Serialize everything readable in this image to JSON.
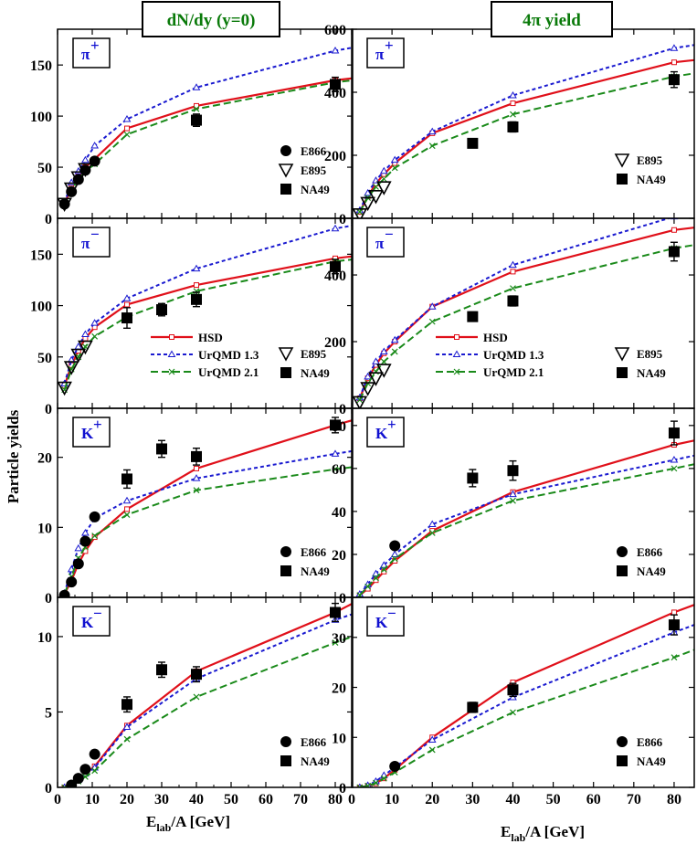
{
  "figure": {
    "ylabel": "Particle yields",
    "xlabel_main": "E",
    "xlabel_sub": "lab",
    "xlabel_rest": "/A [GeV]",
    "columns": [
      {
        "id": "left",
        "header": "dN/dy (y=0)"
      },
      {
        "id": "right",
        "header": "4π yield"
      }
    ]
  },
  "colors": {
    "HSD": "#e0101a",
    "UrQMD 1.3": "#1a1ad0",
    "UrQMD 2.1": "#1a8a1a",
    "data": "#000000",
    "panel_label": "#1010d0",
    "header": "#0a7a0a"
  },
  "chart_data": [
    {
      "id": "pip-dndy",
      "type": "line",
      "label": "π",
      "charge": "+",
      "xlim": [
        0,
        85
      ],
      "ylim": [
        0,
        185
      ],
      "xticks": [
        0,
        10,
        20,
        30,
        40,
        50,
        60,
        70,
        80
      ],
      "yticks": [
        0,
        50,
        100,
        150
      ],
      "series": [
        {
          "name": "HSD",
          "x": [
            2,
            4,
            6,
            8,
            10.7,
            20,
            40,
            80,
            85
          ],
          "y": [
            14,
            30,
            41,
            50,
            58,
            88,
            110,
            135,
            137
          ]
        },
        {
          "name": "UrQMD 1.3",
          "x": [
            2,
            4,
            6,
            8,
            10.7,
            20,
            40,
            80,
            85
          ],
          "y": [
            15,
            35,
            46,
            57,
            71,
            97,
            128,
            164,
            167
          ]
        },
        {
          "name": "UrQMD 2.1",
          "x": [
            2,
            4,
            6,
            8,
            10.7,
            20,
            40,
            80,
            85
          ],
          "y": [
            13,
            28,
            38,
            46,
            53,
            82,
            107,
            133,
            135
          ]
        }
      ],
      "data": [
        {
          "name": "E866",
          "marker": "circle",
          "x": [
            2,
            4,
            6,
            8,
            10.7
          ],
          "y": [
            14,
            26,
            38,
            47,
            56
          ]
        },
        {
          "name": "E895",
          "marker": "triangle-down",
          "x": [
            2,
            4,
            6,
            8
          ],
          "y": [
            14,
            29,
            40,
            48
          ]
        },
        {
          "name": "NA49",
          "marker": "square",
          "x": [
            40,
            80
          ],
          "y": [
            96,
            131
          ],
          "err": [
            6,
            7
          ]
        }
      ],
      "legend": [
        "E866",
        "E895",
        "NA49"
      ]
    },
    {
      "id": "pip-4pi",
      "type": "line",
      "label": "π",
      "charge": "+",
      "xlim": [
        0,
        85
      ],
      "ylim": [
        0,
        600
      ],
      "xticks": [
        0,
        10,
        20,
        30,
        40,
        50,
        60,
        70,
        80
      ],
      "yticks": [
        0,
        200,
        400,
        600
      ],
      "series": [
        {
          "name": "HSD",
          "x": [
            2,
            4,
            6,
            8,
            10.7,
            20,
            40,
            80,
            85
          ],
          "y": [
            20,
            70,
            110,
            140,
            175,
            270,
            365,
            495,
            502
          ]
        },
        {
          "name": "UrQMD 1.3",
          "x": [
            2,
            4,
            6,
            8,
            10.7,
            20,
            40,
            80,
            85
          ],
          "y": [
            25,
            80,
            120,
            150,
            185,
            275,
            390,
            540,
            550
          ]
        },
        {
          "name": "UrQMD 2.1",
          "x": [
            2,
            4,
            6,
            8,
            10.7,
            20,
            40,
            80,
            85
          ],
          "y": [
            20,
            65,
            100,
            125,
            160,
            230,
            330,
            450,
            460
          ]
        }
      ],
      "data": [
        {
          "name": "E895",
          "marker": "triangle-down",
          "x": [
            2,
            4,
            6,
            8
          ],
          "y": [
            12,
            48,
            70,
            98
          ]
        },
        {
          "name": "NA49",
          "marker": "square",
          "x": [
            30,
            40,
            80
          ],
          "y": [
            238,
            290,
            440
          ],
          "err": [
            14,
            16,
            25
          ]
        }
      ],
      "legend": [
        "E895",
        "NA49"
      ]
    },
    {
      "id": "pim-dndy",
      "type": "line",
      "label": "π",
      "charge": "−",
      "xlim": [
        0,
        85
      ],
      "ylim": [
        0,
        185
      ],
      "xticks": [
        0,
        10,
        20,
        30,
        40,
        50,
        60,
        70,
        80
      ],
      "yticks": [
        0,
        50,
        100,
        150
      ],
      "series": [
        {
          "name": "HSD",
          "x": [
            2,
            4,
            6,
            8,
            10.7,
            20,
            40,
            80,
            85
          ],
          "y": [
            22,
            42,
            56,
            68,
            79,
            101,
            120,
            146,
            148
          ]
        },
        {
          "name": "UrQMD 1.3",
          "x": [
            2,
            4,
            6,
            8,
            10.7,
            20,
            40,
            80,
            85
          ],
          "y": [
            24,
            47,
            60,
            72,
            83,
            107,
            136,
            175,
            178
          ]
        },
        {
          "name": "UrQMD 2.1",
          "x": [
            2,
            4,
            6,
            8,
            10.7,
            20,
            40,
            80,
            85
          ],
          "y": [
            18,
            38,
            50,
            60,
            70,
            89,
            114,
            143,
            145
          ]
        }
      ],
      "data": [
        {
          "name": "E895",
          "marker": "triangle-down",
          "x": [
            2,
            4,
            6,
            8
          ],
          "y": [
            20,
            40,
            52,
            60
          ]
        },
        {
          "name": "NA49",
          "marker": "square",
          "x": [
            20,
            30,
            40,
            80
          ],
          "y": [
            88,
            96,
            106,
            138
          ],
          "err": [
            10,
            6,
            7,
            7
          ]
        }
      ],
      "legend_models": [
        "HSD",
        "UrQMD 1.3",
        "UrQMD 2.1"
      ],
      "legend": [
        "E895",
        "NA49"
      ]
    },
    {
      "id": "pim-4pi",
      "type": "line",
      "label": "π",
      "charge": "−",
      "xlim": [
        0,
        85
      ],
      "ylim": [
        0,
        570
      ],
      "xticks": [
        0,
        10,
        20,
        30,
        40,
        50,
        60,
        70,
        80
      ],
      "yticks": [
        0,
        200,
        400
      ],
      "series": [
        {
          "name": "HSD",
          "x": [
            2,
            4,
            6,
            8,
            10.7,
            20,
            40,
            80,
            85
          ],
          "y": [
            30,
            90,
            130,
            165,
            200,
            305,
            410,
            535,
            542
          ]
        },
        {
          "name": "UrQMD 1.3",
          "x": [
            2,
            4,
            6,
            8,
            10.7,
            20,
            40,
            80,
            85
          ],
          "y": [
            32,
            95,
            140,
            170,
            205,
            305,
            430,
            575,
            590
          ]
        },
        {
          "name": "UrQMD 2.1",
          "x": [
            2,
            4,
            6,
            8,
            10.7,
            20,
            40,
            80,
            85
          ],
          "y": [
            25,
            75,
            110,
            140,
            170,
            260,
            360,
            480,
            490
          ]
        }
      ],
      "data": [
        {
          "name": "E895",
          "marker": "triangle-down",
          "x": [
            2,
            4,
            6,
            8
          ],
          "y": [
            18,
            60,
            90,
            115
          ]
        },
        {
          "name": "NA49",
          "marker": "square",
          "x": [
            30,
            40,
            80
          ],
          "y": [
            275,
            322,
            470
          ],
          "err": [
            14,
            15,
            28
          ]
        }
      ],
      "legend_models": [
        "HSD",
        "UrQMD 1.3",
        "UrQMD 2.1"
      ],
      "legend": [
        "E895",
        "NA49"
      ]
    },
    {
      "id": "kp-dndy",
      "type": "line",
      "label": "K",
      "charge": "+",
      "xlim": [
        0,
        85
      ],
      "ylim": [
        0,
        27
      ],
      "xticks": [
        0,
        10,
        20,
        30,
        40,
        50,
        60,
        70,
        80
      ],
      "yticks": [
        0,
        10,
        20
      ],
      "series": [
        {
          "name": "HSD",
          "x": [
            2,
            4,
            6,
            8,
            10.7,
            20,
            40,
            80,
            85
          ],
          "y": [
            0.5,
            2.4,
            4.8,
            6.6,
            8.6,
            12.6,
            18.4,
            24.6,
            25.3
          ]
        },
        {
          "name": "UrQMD 1.3",
          "x": [
            2,
            4,
            6,
            8,
            10.7,
            20,
            40,
            80,
            85
          ],
          "y": [
            0.6,
            4.0,
            7.0,
            9.2,
            11.3,
            13.8,
            17.0,
            20.5,
            20.9
          ]
        },
        {
          "name": "UrQMD 2.1",
          "x": [
            2,
            4,
            6,
            8,
            10.7,
            20,
            40,
            80,
            85
          ],
          "y": [
            0.5,
            3.0,
            5.6,
            7.2,
            8.8,
            11.8,
            15.3,
            18.3,
            18.6
          ]
        }
      ],
      "data": [
        {
          "name": "E866",
          "marker": "circle",
          "x": [
            2,
            4,
            6,
            8,
            10.7
          ],
          "y": [
            0.3,
            2.2,
            4.8,
            8.0,
            11.5
          ]
        },
        {
          "name": "NA49",
          "marker": "square",
          "x": [
            20,
            30,
            40,
            80
          ],
          "y": [
            16.9,
            21.2,
            20.1,
            24.6
          ],
          "err": [
            1.3,
            1.2,
            1.2,
            1.1
          ]
        }
      ],
      "legend": [
        "E866",
        "NA49"
      ]
    },
    {
      "id": "kp-4pi",
      "type": "line",
      "label": "K",
      "charge": "+",
      "xlim": [
        0,
        85
      ],
      "ylim": [
        0,
        88
      ],
      "xticks": [
        0,
        10,
        20,
        30,
        40,
        50,
        60,
        70,
        80
      ],
      "yticks": [
        0,
        20,
        40,
        60,
        80
      ],
      "series": [
        {
          "name": "HSD",
          "x": [
            2,
            4,
            6,
            8,
            10.7,
            20,
            40,
            80,
            85
          ],
          "y": [
            1,
            4,
            8,
            12,
            17,
            31,
            49,
            71,
            73
          ]
        },
        {
          "name": "UrQMD 1.3",
          "x": [
            2,
            4,
            6,
            8,
            10.7,
            20,
            40,
            80,
            85
          ],
          "y": [
            1.5,
            6,
            11,
            15,
            20,
            34,
            48,
            64,
            66
          ]
        },
        {
          "name": "UrQMD 2.1",
          "x": [
            2,
            4,
            6,
            8,
            10.7,
            20,
            40,
            80,
            85
          ],
          "y": [
            1,
            5,
            9,
            13,
            18,
            30,
            45,
            60,
            62
          ]
        }
      ],
      "data": [
        {
          "name": "E866",
          "marker": "circle",
          "x": [
            10.7
          ],
          "y": [
            24
          ]
        },
        {
          "name": "NA49",
          "marker": "square",
          "x": [
            30,
            40,
            80
          ],
          "y": [
            55.5,
            59,
            76.5
          ],
          "err": [
            4,
            4.5,
            5.5
          ]
        }
      ],
      "legend": [
        "E866",
        "NA49"
      ]
    },
    {
      "id": "km-dndy",
      "type": "line",
      "label": "K",
      "charge": "−",
      "xlim": [
        0,
        85
      ],
      "ylim": [
        0,
        12.6
      ],
      "xticks": [
        0,
        10,
        20,
        30,
        40,
        50,
        60,
        70,
        80
      ],
      "yticks": [
        0,
        5,
        10
      ],
      "series": [
        {
          "name": "HSD",
          "x": [
            2,
            4,
            6,
            8,
            10.7,
            20,
            40,
            80,
            85
          ],
          "y": [
            0.0,
            0.2,
            0.5,
            0.9,
            1.4,
            4.1,
            7.7,
            11.6,
            12.2
          ]
        },
        {
          "name": "UrQMD 1.3",
          "x": [
            2,
            4,
            6,
            8,
            10.7,
            20,
            40,
            80,
            85
          ],
          "y": [
            0.0,
            0.2,
            0.5,
            0.9,
            1.3,
            4.0,
            7.2,
            11.1,
            11.5
          ]
        },
        {
          "name": "UrQMD 2.1",
          "x": [
            2,
            4,
            6,
            8,
            10.7,
            20,
            40,
            80,
            85
          ],
          "y": [
            0.0,
            0.15,
            0.4,
            0.7,
            1.1,
            3.2,
            6.0,
            9.6,
            10.0
          ]
        }
      ],
      "data": [
        {
          "name": "E866",
          "marker": "circle",
          "x": [
            4,
            6,
            8,
            10.7
          ],
          "y": [
            0.15,
            0.6,
            1.2,
            2.2
          ]
        },
        {
          "name": "NA49",
          "marker": "square",
          "x": [
            20,
            30,
            40,
            80
          ],
          "y": [
            5.5,
            7.8,
            7.5,
            11.6
          ],
          "err": [
            0.5,
            0.5,
            0.5,
            0.6
          ]
        }
      ],
      "legend": [
        "E866",
        "NA49"
      ]
    },
    {
      "id": "km-4pi",
      "type": "line",
      "label": "K",
      "charge": "−",
      "xlim": [
        0,
        85
      ],
      "ylim": [
        0,
        38
      ],
      "xticks": [
        0,
        10,
        20,
        30,
        40,
        50,
        60,
        70,
        80
      ],
      "yticks": [
        0,
        10,
        20,
        30
      ],
      "series": [
        {
          "name": "HSD",
          "x": [
            2,
            4,
            6,
            8,
            10.7,
            20,
            40,
            80,
            85
          ],
          "y": [
            0.0,
            0.3,
            0.8,
            1.8,
            3.5,
            10,
            21,
            35,
            36.5
          ]
        },
        {
          "name": "UrQMD 1.3",
          "x": [
            2,
            4,
            6,
            8,
            10.7,
            20,
            40,
            80,
            85
          ],
          "y": [
            0.0,
            0.4,
            1.2,
            2.4,
            4.0,
            9.5,
            18,
            31,
            32.5
          ]
        },
        {
          "name": "UrQMD 2.1",
          "x": [
            2,
            4,
            6,
            8,
            10.7,
            20,
            40,
            80,
            85
          ],
          "y": [
            0.0,
            0.3,
            0.9,
            1.8,
            3.0,
            7.5,
            15,
            26,
            27.5
          ]
        }
      ],
      "data": [
        {
          "name": "E866",
          "marker": "circle",
          "x": [
            10.7
          ],
          "y": [
            4.2
          ]
        },
        {
          "name": "NA49",
          "marker": "square",
          "x": [
            30,
            40,
            80
          ],
          "y": [
            16,
            19.5,
            32.5
          ],
          "err": [
            1.0,
            1.3,
            2.0
          ]
        }
      ],
      "legend": [
        "E866",
        "NA49"
      ]
    }
  ]
}
